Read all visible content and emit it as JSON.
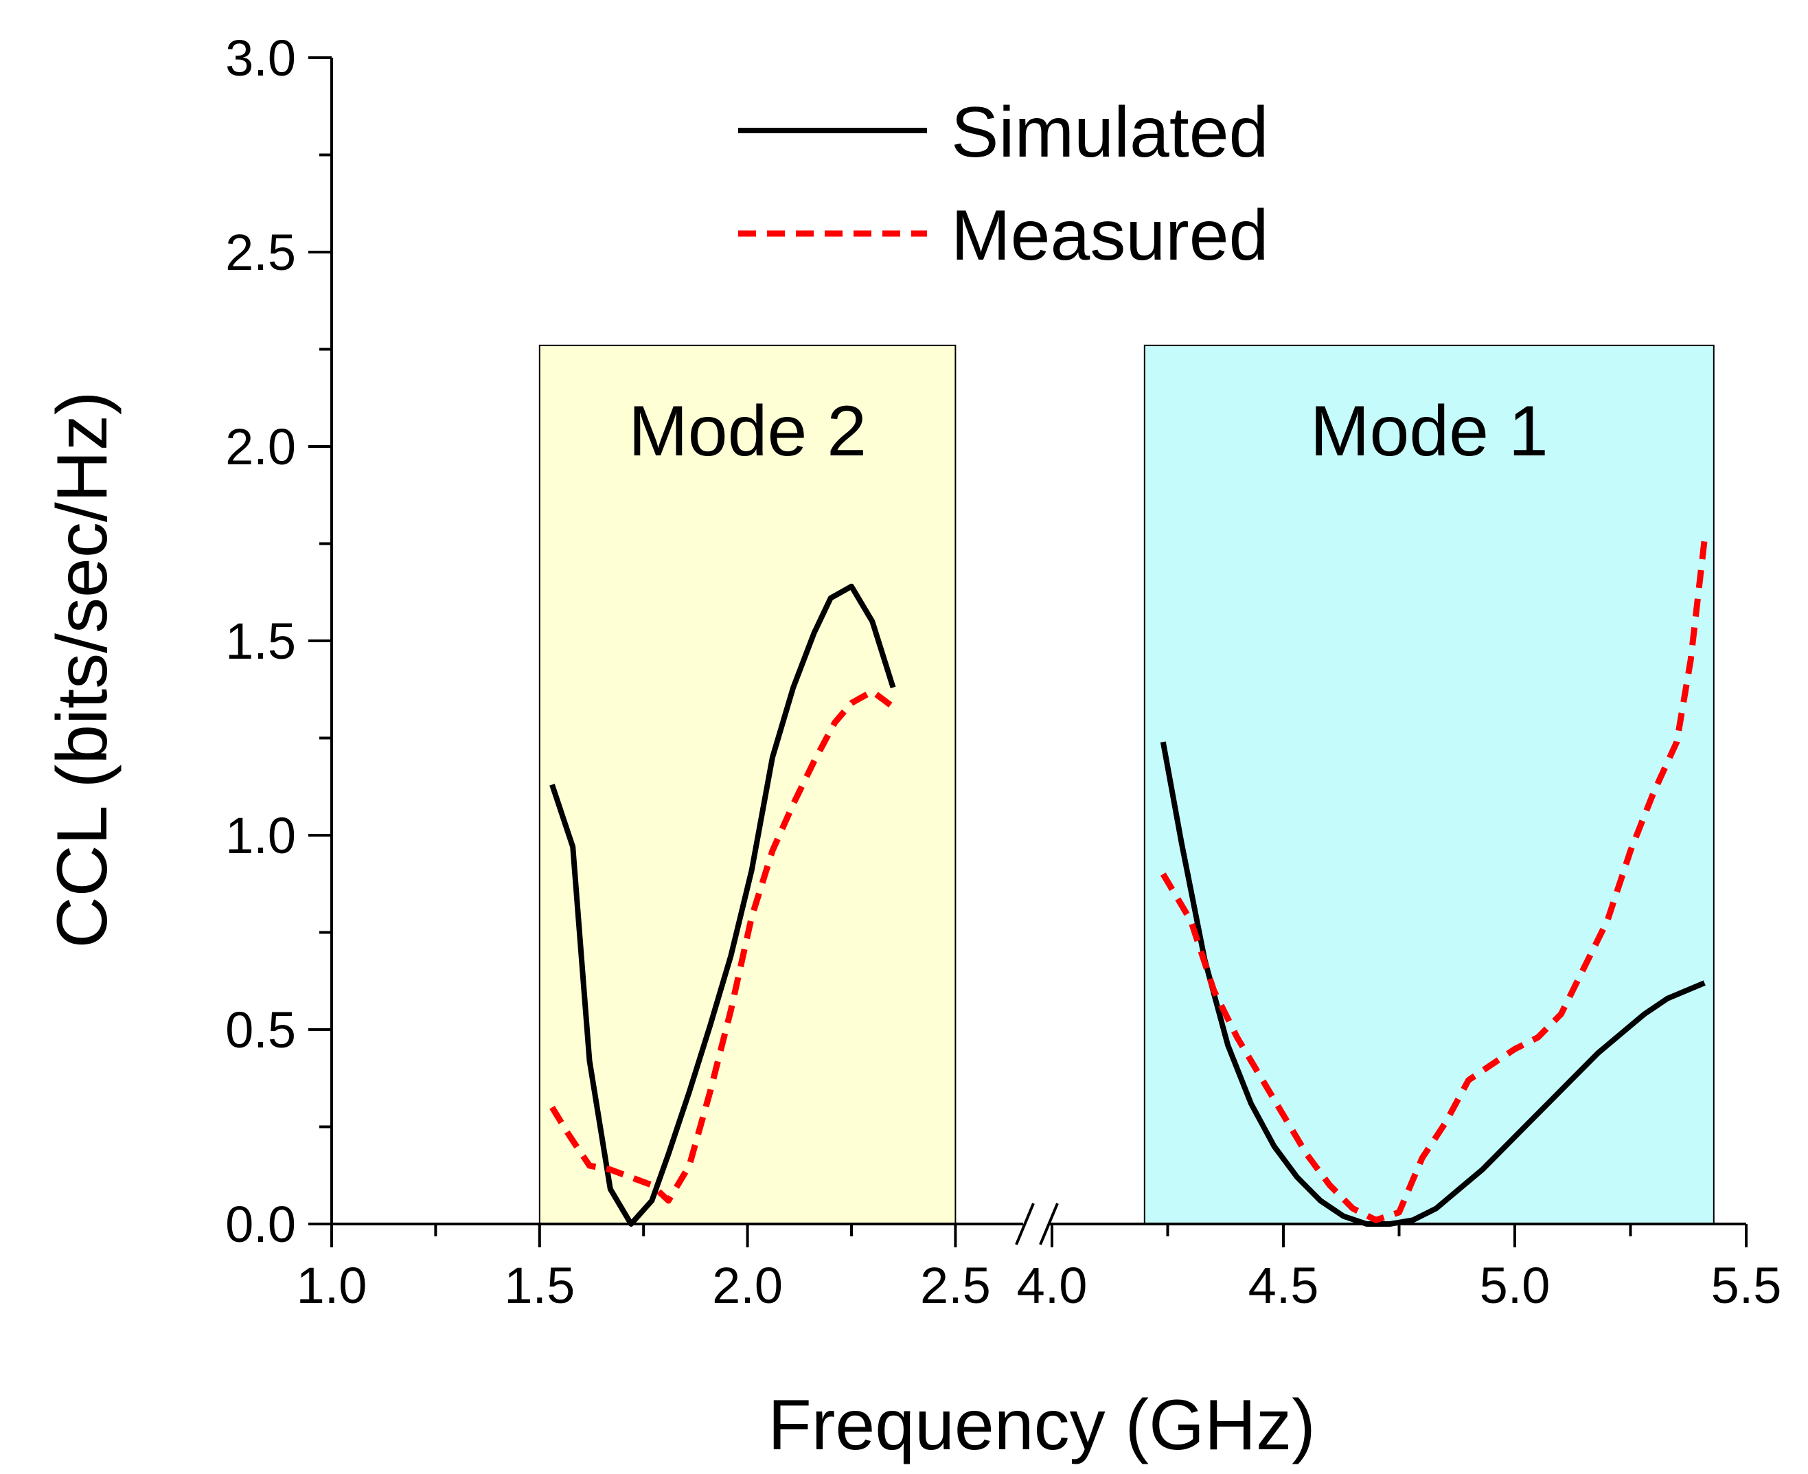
{
  "chart_data": {
    "type": "line",
    "xlabel": "Frequency (GHz)",
    "ylabel": "CCL (bits/sec/Hz)",
    "ylim": [
      0,
      3.0
    ],
    "x_axis": {
      "broken": true,
      "segments": [
        {
          "range": [
            1.0,
            2.5
          ],
          "ticks": [
            "1.0",
            "1.5",
            "2.0",
            "2.5"
          ]
        },
        {
          "range": [
            4.0,
            5.5
          ],
          "ticks": [
            "4.0",
            "4.5",
            "5.0",
            "5.5"
          ]
        }
      ]
    },
    "y_ticks": [
      "0.0",
      "0.5",
      "1.0",
      "1.5",
      "2.0",
      "2.5",
      "3.0"
    ],
    "bands": [
      {
        "label": "Mode 2",
        "x_range": [
          1.5,
          2.5
        ],
        "y_top": 2.26,
        "color": "#ffffd6"
      },
      {
        "label": "Mode 1",
        "x_range": [
          4.2,
          5.43
        ],
        "y_top": 2.26,
        "color": "#c6fbfc"
      }
    ],
    "legend": {
      "position": "top-center"
    },
    "series": [
      {
        "name": "Simulated",
        "color": "#000000",
        "style": "solid",
        "points": [
          [
            1.53,
            1.13
          ],
          [
            1.58,
            0.97
          ],
          [
            1.62,
            0.42
          ],
          [
            1.67,
            0.09
          ],
          [
            1.72,
            0.0
          ],
          [
            1.77,
            0.06
          ],
          [
            1.81,
            0.18
          ],
          [
            1.86,
            0.34
          ],
          [
            1.91,
            0.51
          ],
          [
            1.96,
            0.69
          ],
          [
            2.01,
            0.91
          ],
          [
            2.06,
            1.2
          ],
          [
            2.11,
            1.38
          ],
          [
            2.16,
            1.52
          ],
          [
            2.2,
            1.61
          ],
          [
            2.25,
            1.64
          ],
          [
            2.3,
            1.55
          ],
          [
            2.35,
            1.38
          ],
          [
            4.24,
            1.24
          ],
          [
            4.28,
            0.98
          ],
          [
            4.33,
            0.68
          ],
          [
            4.38,
            0.46
          ],
          [
            4.43,
            0.31
          ],
          [
            4.48,
            0.2
          ],
          [
            4.53,
            0.12
          ],
          [
            4.58,
            0.06
          ],
          [
            4.63,
            0.02
          ],
          [
            4.68,
            0.0
          ],
          [
            4.73,
            0.0
          ],
          [
            4.78,
            0.01
          ],
          [
            4.83,
            0.04
          ],
          [
            4.88,
            0.09
          ],
          [
            4.93,
            0.14
          ],
          [
            4.98,
            0.2
          ],
          [
            5.03,
            0.26
          ],
          [
            5.08,
            0.32
          ],
          [
            5.13,
            0.38
          ],
          [
            5.18,
            0.44
          ],
          [
            5.23,
            0.49
          ],
          [
            5.28,
            0.54
          ],
          [
            5.33,
            0.58
          ],
          [
            5.41,
            0.62
          ]
        ]
      },
      {
        "name": "Measured",
        "color": "#ff0000",
        "style": "dashed",
        "points": [
          [
            1.53,
            0.3
          ],
          [
            1.57,
            0.23
          ],
          [
            1.62,
            0.15
          ],
          [
            1.67,
            0.14
          ],
          [
            1.72,
            0.12
          ],
          [
            1.77,
            0.1
          ],
          [
            1.81,
            0.06
          ],
          [
            1.86,
            0.15
          ],
          [
            1.91,
            0.34
          ],
          [
            1.96,
            0.55
          ],
          [
            2.01,
            0.79
          ],
          [
            2.06,
            0.96
          ],
          [
            2.11,
            1.08
          ],
          [
            2.16,
            1.19
          ],
          [
            2.21,
            1.29
          ],
          [
            2.25,
            1.34
          ],
          [
            2.3,
            1.37
          ],
          [
            2.35,
            1.33
          ],
          [
            4.24,
            0.9
          ],
          [
            4.3,
            0.78
          ],
          [
            4.35,
            0.6
          ],
          [
            4.4,
            0.48
          ],
          [
            4.45,
            0.38
          ],
          [
            4.5,
            0.28
          ],
          [
            4.55,
            0.18
          ],
          [
            4.6,
            0.1
          ],
          [
            4.65,
            0.04
          ],
          [
            4.7,
            0.01
          ],
          [
            4.75,
            0.03
          ],
          [
            4.8,
            0.17
          ],
          [
            4.85,
            0.26
          ],
          [
            4.9,
            0.37
          ],
          [
            4.95,
            0.41
          ],
          [
            5.0,
            0.45
          ],
          [
            5.05,
            0.48
          ],
          [
            5.1,
            0.54
          ],
          [
            5.15,
            0.66
          ],
          [
            5.2,
            0.78
          ],
          [
            5.25,
            0.96
          ],
          [
            5.3,
            1.11
          ],
          [
            5.35,
            1.24
          ],
          [
            5.38,
            1.45
          ],
          [
            5.41,
            1.76
          ]
        ]
      }
    ]
  }
}
